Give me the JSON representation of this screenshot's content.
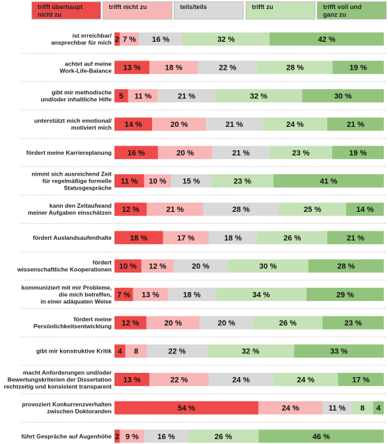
{
  "chart_data": {
    "type": "bar",
    "orientation": "horizontal",
    "stacked": true,
    "xlim": [
      0,
      100
    ],
    "legend_position": "top",
    "series": [
      {
        "name": "trifft überhaupt nicht zu",
        "color": "#ee4a4a"
      },
      {
        "name": "trifft nicht zu",
        "color": "#f8b6b6"
      },
      {
        "name": "teils/teils",
        "color": "#d9d9d9"
      },
      {
        "name": "trifft zu",
        "color": "#c5e2b6"
      },
      {
        "name": "trifft voll und ganz zu",
        "color": "#93c47d"
      }
    ],
    "categories": [
      "ist erreichbar/ ansprechbar für mich",
      "achtet auf meine Work-Life-Balance",
      "gibt mir methodische und/oder inhaltliche Hilfe",
      "unterstützt mich emotional/ motiviert mich",
      "fördert meine Karriereplanung",
      "nimmt sich ausreichend Zeit für regelmäßige formelle Statusgespräche",
      "kann den Zeitaufwand meiner Aufgaben einschätzen",
      "fördert Auslandsaufenthalte",
      "fördert wissenschaftliche Kooperationen",
      "kommuniziert mit mir Probleme, die mich betreffen, in einer adäquaten Weise",
      "fördert meine Persönlichkeitsentwicklung",
      "gibt mir konstruktive Kritik",
      "macht Anforderungen und/oder Bewertungskriterien der Dissertation rechtzeitig und konsistent transparent",
      "provoziert Konkurrenzverhalten zwischen Doktoranden",
      "führt Gespräche auf Augenhöhe"
    ],
    "rows": [
      {
        "lines": [
          "ist erreichbar/",
          "ansprechbar für mich"
        ],
        "values": [
          2,
          7,
          16,
          32,
          42
        ],
        "labels": [
          "2",
          "7 %",
          "16 %",
          "32 %",
          "42 %"
        ]
      },
      {
        "lines": [
          "achtet auf meine",
          "Work-Life-Balance"
        ],
        "values": [
          13,
          18,
          22,
          28,
          19
        ],
        "labels": [
          "13 %",
          "18 %",
          "22 %",
          "28 %",
          "19 %"
        ]
      },
      {
        "lines": [
          "gibt mir methodische",
          "und/oder inhaltliche Hilfe"
        ],
        "values": [
          5,
          11,
          21,
          32,
          30
        ],
        "labels": [
          "5",
          "11 %",
          "21 %",
          "32 %",
          "30 %"
        ]
      },
      {
        "lines": [
          "unterstützt mich emotional/",
          "motiviert mich"
        ],
        "values": [
          14,
          20,
          21,
          24,
          21
        ],
        "labels": [
          "14 %",
          "20 %",
          "21 %",
          "24 %",
          "21 %"
        ]
      },
      {
        "lines": [
          "fördert meine Karriereplanung"
        ],
        "values": [
          16,
          20,
          21,
          23,
          19
        ],
        "labels": [
          "16 %",
          "20 %",
          "21 %",
          "23 %",
          "19 %"
        ]
      },
      {
        "lines": [
          "nimmt sich ausreichend Zeit",
          "für regelmäßige formelle",
          "Statusgespräche"
        ],
        "values": [
          11,
          10,
          15,
          23,
          41
        ],
        "labels": [
          "11 %",
          "10 %",
          "15 %",
          "23 %",
          "41 %"
        ]
      },
      {
        "lines": [
          "kann den Zeitaufwand",
          "meiner Aufgaben einschätzen"
        ],
        "values": [
          12,
          21,
          28,
          25,
          14
        ],
        "labels": [
          "12 %",
          "21 %",
          "28 %",
          "25 %",
          "14 %"
        ]
      },
      {
        "lines": [
          "fördert Auslandsaufenthalte"
        ],
        "values": [
          18,
          17,
          18,
          26,
          21
        ],
        "labels": [
          "18 %",
          "17 %",
          "18 %",
          "26 %",
          "21 %"
        ]
      },
      {
        "lines": [
          "fördert",
          "wissenschaftliche Kooperationen"
        ],
        "values": [
          10,
          12,
          20,
          30,
          28
        ],
        "labels": [
          "10 %",
          "12 %",
          "20 %",
          "30 %",
          "28 %"
        ]
      },
      {
        "lines": [
          "kommuniziert mit mir Probleme,",
          "die mich betreffen,",
          "in einer adäquaten Weise"
        ],
        "values": [
          7,
          13,
          18,
          34,
          29
        ],
        "labels": [
          "7 %",
          "13 %",
          "18 %",
          "34 %",
          "29 %"
        ]
      },
      {
        "lines": [
          "fördert meine",
          "Persönlichkeitsentwicklung"
        ],
        "values": [
          12,
          20,
          20,
          26,
          23
        ],
        "labels": [
          "12 %",
          "20 %",
          "20 %",
          "26 %",
          "23 %"
        ]
      },
      {
        "lines": [
          "gibt mir konstruktive Kritik"
        ],
        "values": [
          4,
          8,
          22,
          32,
          33
        ],
        "labels": [
          "4",
          "8",
          "22 %",
          "32 %",
          "33 %"
        ]
      },
      {
        "lines": [
          "macht Anforderungen und/oder",
          "Bewertungskriterien der Dissertation",
          "rechtzeitig und konsistent transparent"
        ],
        "values": [
          13,
          22,
          24,
          24,
          17
        ],
        "labels": [
          "13 %",
          "22 %",
          "24 %",
          "24 %",
          "17 %"
        ]
      },
      {
        "lines": [
          "provoziert Konkurrenzverhalten",
          "zwischen Doktoranden"
        ],
        "values": [
          54,
          24,
          11,
          8,
          4
        ],
        "labels": [
          "54 %",
          "24 %",
          "11 %",
          "8",
          "4"
        ]
      },
      {
        "lines": [
          "führt Gespräche auf Augenhöhe"
        ],
        "values": [
          2,
          9,
          16,
          26,
          46
        ],
        "labels": [
          "2",
          "9 %",
          "16 %",
          "26 %",
          "46 %"
        ]
      }
    ]
  },
  "legend": [
    {
      "lines": [
        "trifft überhaupt",
        "nicht zu"
      ],
      "color": "#ee4a4a"
    },
    {
      "lines": [
        "trifft nicht zu"
      ],
      "color": "#f8b6b6"
    },
    {
      "lines": [
        "teils/teils"
      ],
      "color": "#d9d9d9"
    },
    {
      "lines": [
        "trifft zu"
      ],
      "color": "#c5e2b6"
    },
    {
      "lines": [
        "trifft voll und",
        "ganz zu"
      ],
      "color": "#93c47d"
    }
  ]
}
